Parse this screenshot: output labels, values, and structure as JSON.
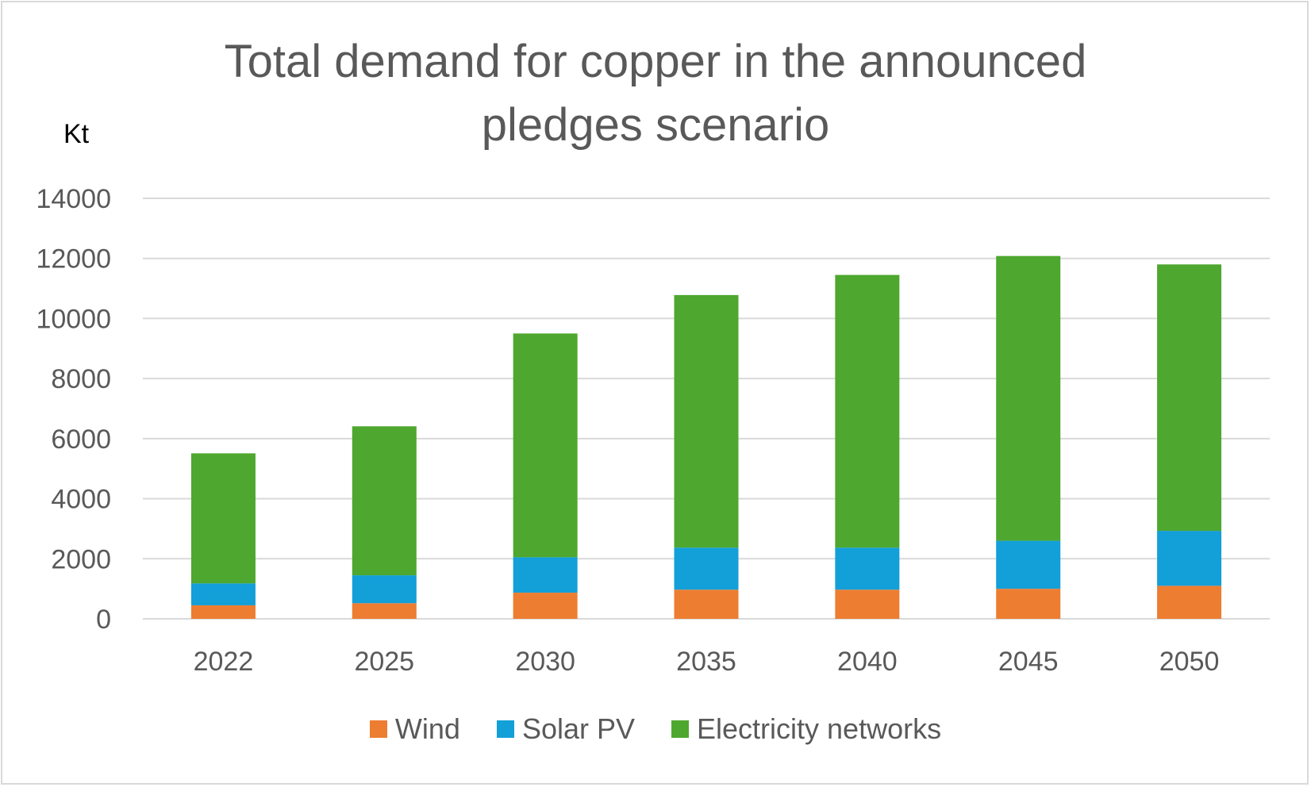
{
  "chart_data": {
    "type": "bar",
    "stacked": true,
    "title_lines": [
      "Total demand for copper in the announced",
      "pledges scenario"
    ],
    "ylabel": "Kt",
    "xlabel": "",
    "categories": [
      "2022",
      "2025",
      "2030",
      "2035",
      "2040",
      "2045",
      "2050"
    ],
    "ylim": [
      0,
      14000
    ],
    "yticks": [
      0,
      2000,
      4000,
      6000,
      8000,
      10000,
      12000,
      14000
    ],
    "grid": true,
    "legend_position": "bottom",
    "series": [
      {
        "name": "Wind",
        "color": "#ed7d31",
        "values": [
          450,
          520,
          870,
          970,
          970,
          1000,
          1100
        ]
      },
      {
        "name": "Solar PV",
        "color": "#139fd8",
        "values": [
          730,
          930,
          1180,
          1400,
          1400,
          1600,
          1830
        ]
      },
      {
        "name": "Electricity networks",
        "color": "#4ea72e",
        "values": [
          4330,
          4960,
          7450,
          8410,
          9080,
          9480,
          8870
        ]
      }
    ]
  }
}
